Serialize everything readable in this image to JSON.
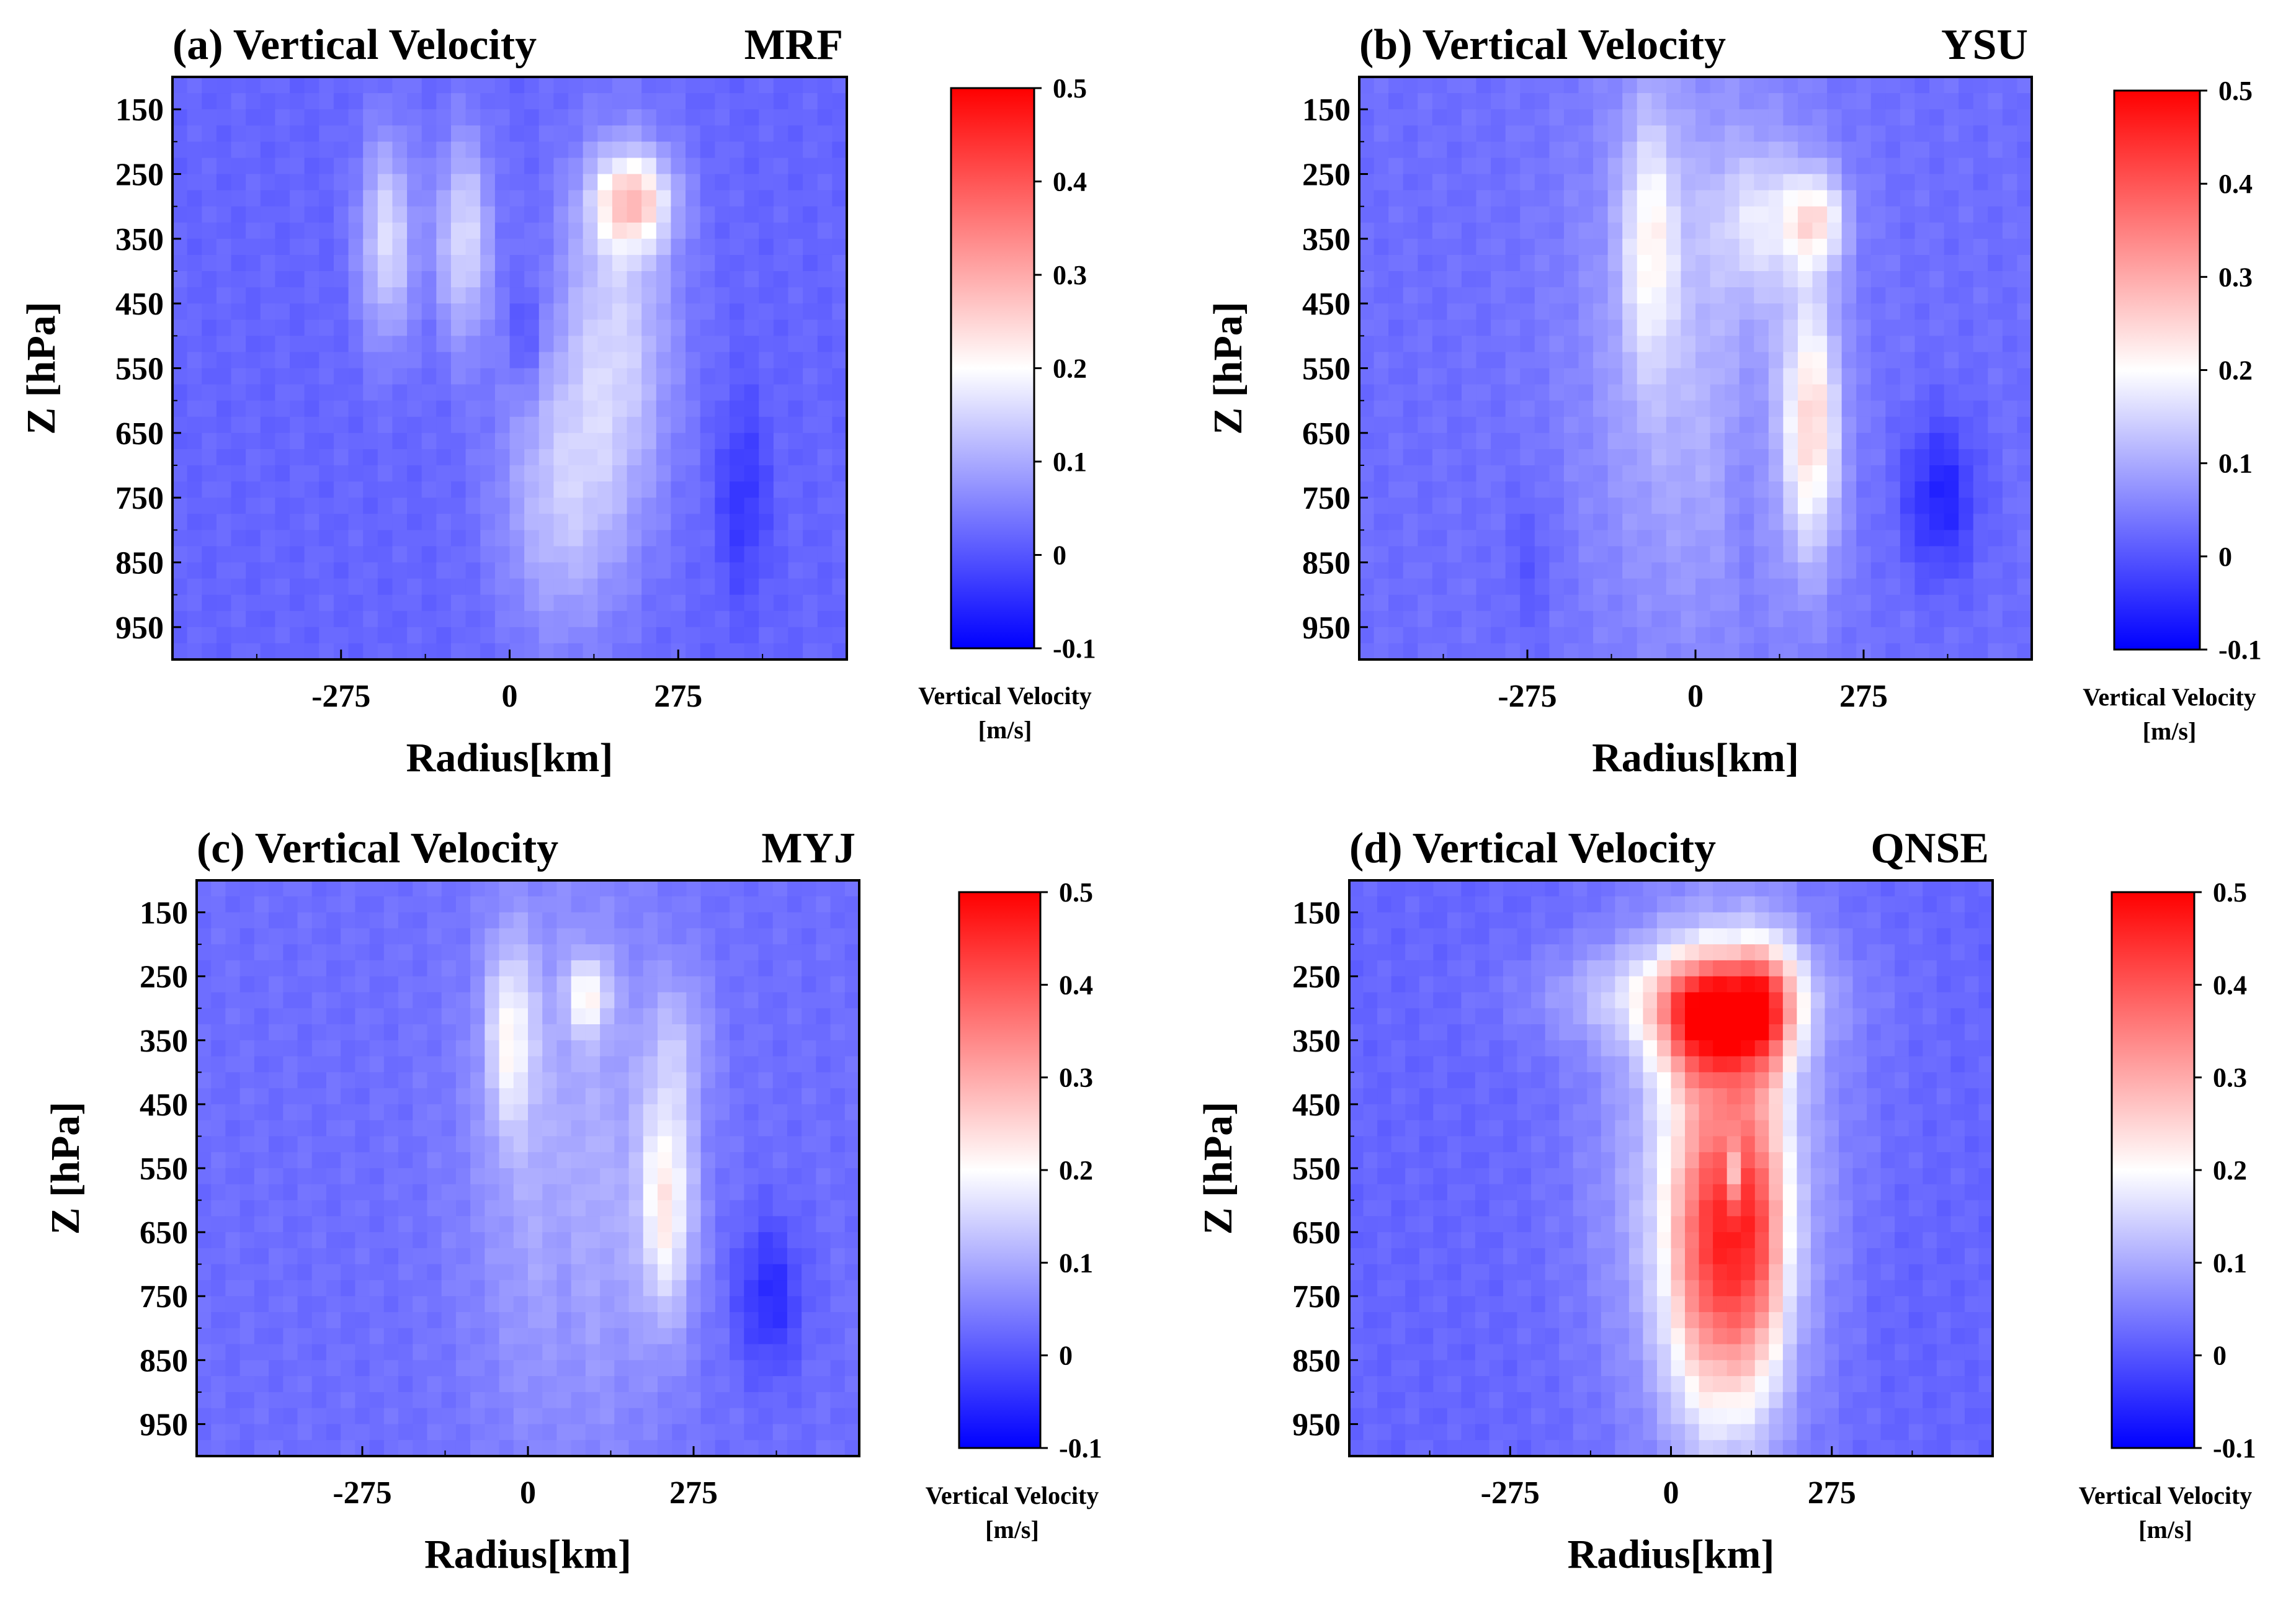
{
  "colorbar": {
    "ticks": [
      -0.1,
      0,
      0.1,
      0.2,
      0.3,
      0.4,
      0.5
    ],
    "label_line1": "Vertical Velocity",
    "label_line2": "[m/s]",
    "colors": {
      "low": "#0000ff",
      "mid": "#ffffff",
      "high": "#ff0000"
    }
  },
  "chart_data": [
    {
      "type": "heatmap",
      "panel": "(a)",
      "title": "(a) Vertical Velocity",
      "scheme": "MRF",
      "xlabel": "Radius[km]",
      "ylabel": "Z [hPa]",
      "xticks": [
        -275,
        0,
        275
      ],
      "yticks": [
        150,
        250,
        350,
        450,
        550,
        650,
        750,
        850,
        950
      ],
      "xlim": [
        -550,
        550
      ],
      "ylim": [
        100,
        1000
      ],
      "clim": [
        -0.1,
        0.5
      ],
      "background": 0.02,
      "blobs": [
        {
          "x": -200,
          "p": 350,
          "rx": 45,
          "rp": 160,
          "v": 0.14
        },
        {
          "x": -75,
          "p": 350,
          "rx": 45,
          "rp": 160,
          "v": 0.14
        },
        {
          "x": 200,
          "p": 290,
          "rx": 65,
          "rp": 75,
          "v": 0.21
        },
        {
          "x": 175,
          "p": 500,
          "rx": 95,
          "rp": 280,
          "v": 0.12
        },
        {
          "x": 80,
          "p": 750,
          "rx": 100,
          "rp": 220,
          "v": 0.1
        },
        {
          "x": 30,
          "p": 500,
          "rx": 25,
          "rp": 80,
          "v": -0.05
        },
        {
          "x": 380,
          "p": 750,
          "rx": 40,
          "rp": 150,
          "v": -0.06
        }
      ]
    },
    {
      "type": "heatmap",
      "panel": "(b)",
      "title": "(b) Vertical Velocity",
      "scheme": "YSU",
      "xlabel": "Radius[km]",
      "ylabel": "Z [hPa]",
      "xticks": [
        -275,
        0,
        275
      ],
      "yticks": [
        150,
        250,
        350,
        450,
        550,
        650,
        750,
        850,
        950
      ],
      "xlim": [
        -550,
        550
      ],
      "ylim": [
        100,
        1000
      ],
      "clim": [
        -0.1,
        0.5
      ],
      "background": 0.03,
      "blobs": [
        {
          "x": 0,
          "p": 520,
          "rx": 190,
          "rp": 480,
          "v": 0.08
        },
        {
          "x": -75,
          "p": 350,
          "rx": 45,
          "rp": 200,
          "v": 0.13
        },
        {
          "x": 120,
          "p": 320,
          "rx": 90,
          "rp": 110,
          "v": 0.1
        },
        {
          "x": 200,
          "p": 320,
          "rx": 45,
          "rp": 70,
          "v": 0.14
        },
        {
          "x": 190,
          "p": 640,
          "rx": 45,
          "rp": 200,
          "v": 0.2
        },
        {
          "x": 80,
          "p": 700,
          "rx": 30,
          "rp": 200,
          "v": -0.03
        },
        {
          "x": 400,
          "p": 750,
          "rx": 60,
          "rp": 120,
          "v": -0.09
        },
        {
          "x": -270,
          "p": 850,
          "rx": 40,
          "rp": 120,
          "v": -0.03
        }
      ]
    },
    {
      "type": "heatmap",
      "panel": "(c)",
      "title": "(c) Vertical Velocity",
      "scheme": "MYJ",
      "xlabel": "Radius[km]",
      "ylabel": "Z [hPa]",
      "xticks": [
        -275,
        0,
        275
      ],
      "yticks": [
        150,
        250,
        350,
        450,
        550,
        650,
        750,
        850,
        950
      ],
      "xlim": [
        -550,
        550
      ],
      "ylim": [
        100,
        1000
      ],
      "clim": [
        -0.1,
        0.5
      ],
      "background": 0.03,
      "blobs": [
        {
          "x": 70,
          "p": 560,
          "rx": 160,
          "rp": 450,
          "v": 0.08
        },
        {
          "x": -30,
          "p": 340,
          "rx": 40,
          "rp": 150,
          "v": 0.14
        },
        {
          "x": 100,
          "p": 280,
          "rx": 35,
          "rp": 60,
          "v": 0.14
        },
        {
          "x": 230,
          "p": 600,
          "rx": 45,
          "rp": 180,
          "v": 0.17
        },
        {
          "x": 250,
          "p": 350,
          "rx": 55,
          "rp": 120,
          "v": 0.06
        },
        {
          "x": 60,
          "p": 700,
          "rx": 30,
          "rp": 250,
          "v": -0.02
        },
        {
          "x": 400,
          "p": 750,
          "rx": 55,
          "rp": 120,
          "v": -0.08
        }
      ]
    },
    {
      "type": "heatmap",
      "panel": "(d)",
      "title": "(d) Vertical Velocity",
      "scheme": "QNSE",
      "xlabel": "Radius[km]",
      "ylabel": "Z [hPa]",
      "xticks": [
        -275,
        0,
        275
      ],
      "yticks": [
        150,
        250,
        350,
        450,
        550,
        650,
        750,
        850,
        950
      ],
      "xlim": [
        -550,
        550
      ],
      "ylim": [
        100,
        1000
      ],
      "clim": [
        -0.1,
        0.5
      ],
      "background": 0.02,
      "blobs": [
        {
          "x": 80,
          "p": 560,
          "rx": 190,
          "rp": 420,
          "v": 0.14
        },
        {
          "x": 20,
          "p": 280,
          "rx": 220,
          "rp": 80,
          "v": 0.12
        },
        {
          "x": 60,
          "p": 320,
          "rx": 80,
          "rp": 100,
          "v": 0.3
        },
        {
          "x": 160,
          "p": 300,
          "rx": 60,
          "rp": 100,
          "v": 0.26
        },
        {
          "x": 70,
          "p": 680,
          "rx": 75,
          "rp": 260,
          "v": 0.27
        },
        {
          "x": 150,
          "p": 650,
          "rx": 55,
          "rp": 250,
          "v": 0.2
        },
        {
          "x": 110,
          "p": 560,
          "rx": 12,
          "rp": 50,
          "v": -0.15
        },
        {
          "x": 360,
          "p": 750,
          "rx": 90,
          "rp": 200,
          "v": -0.01
        }
      ]
    }
  ]
}
